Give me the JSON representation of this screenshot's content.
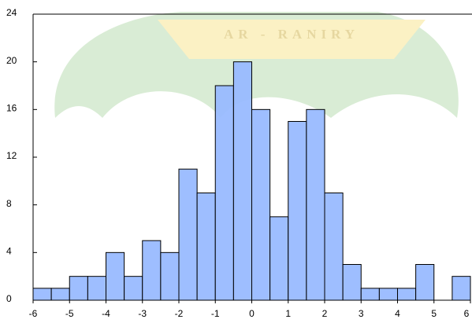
{
  "chart_data": {
    "type": "histogram",
    "watermark": "AR - RANIRY",
    "bins": [
      -6,
      -5.5,
      -5,
      -4.5,
      -4,
      -3.5,
      -3,
      -2.5,
      -2,
      -1.5,
      -1,
      -0.5,
      0,
      0.5,
      1,
      1.5,
      2,
      2.5,
      3,
      3.5,
      4,
      4.5,
      5,
      5.5,
      6
    ],
    "values": [
      1,
      1,
      2,
      2,
      4,
      2,
      5,
      4,
      11,
      9,
      18,
      20,
      16,
      7,
      15,
      16,
      9,
      3,
      1,
      1,
      1,
      3,
      0,
      2
    ],
    "color": "#99bbff",
    "xlim": [
      -6,
      6
    ],
    "xticks": [
      -6,
      -5,
      -4,
      -3,
      -2,
      -1,
      0,
      1,
      2,
      3,
      4,
      5,
      6
    ],
    "ylim": [
      0,
      24
    ],
    "yticks": [
      0,
      4,
      8,
      12,
      16,
      20,
      24
    ]
  }
}
